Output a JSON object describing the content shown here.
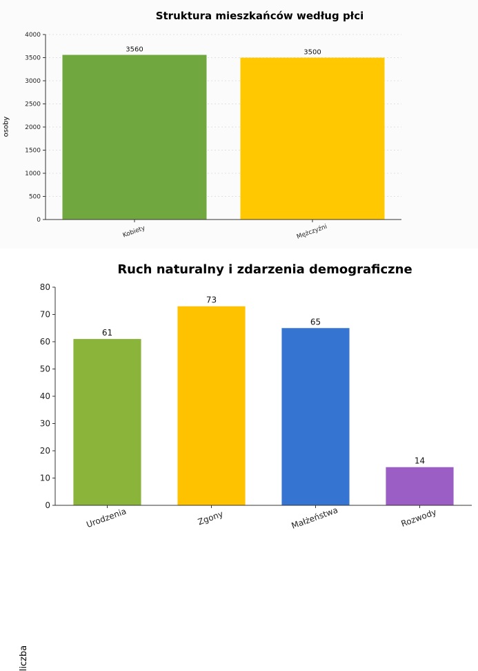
{
  "chart_data": [
    {
      "type": "bar",
      "title": "Struktura mieszkańców według płci",
      "xlabel": "",
      "ylabel": "osoby",
      "categories": [
        "Kobiety",
        "Mężczyźni"
      ],
      "values": [
        3560,
        3500
      ],
      "data_labels": [
        "3560",
        "3500"
      ],
      "ylim": [
        0,
        4000
      ],
      "yticks": [
        "0",
        "500",
        "1000",
        "1500",
        "2000",
        "2500",
        "3000",
        "3500",
        "4000"
      ],
      "colors": [
        "#70a83f",
        "#ffc800"
      ],
      "grid": "horizontal-dotted",
      "legend": "none"
    },
    {
      "type": "bar",
      "title": "Ruch naturalny i zdarzenia demograficzne",
      "xlabel": "",
      "ylabel": "liczba",
      "categories": [
        "Urodzenia",
        "Zgony",
        "Małżeństwa",
        "Rozwody"
      ],
      "values": [
        61,
        73,
        65,
        14
      ],
      "data_labels": [
        "61",
        "73",
        "65",
        "14"
      ],
      "ylim": [
        0,
        80
      ],
      "yticks": [
        "0",
        "10",
        "20",
        "30",
        "40",
        "50",
        "60",
        "70",
        "80"
      ],
      "colors": [
        "#8ab53a",
        "#ffc200",
        "#3575d1",
        "#9b5ec4"
      ],
      "grid": "none",
      "legend": "none"
    }
  ]
}
